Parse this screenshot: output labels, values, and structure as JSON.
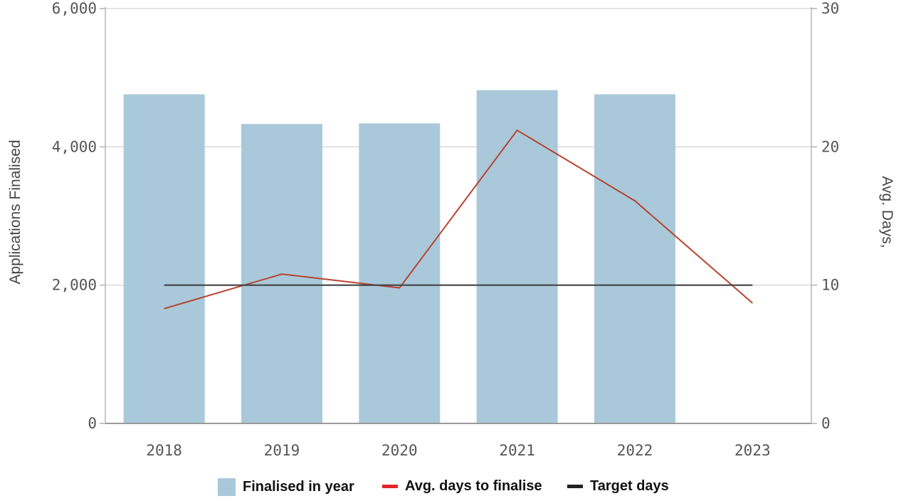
{
  "chart_data": {
    "type": "bar",
    "categories": [
      "2018",
      "2019",
      "2020",
      "2021",
      "2022",
      "2023"
    ],
    "series": [
      {
        "name": "Finalised in year",
        "type": "bar",
        "axis": "left",
        "color": "#a9c9da",
        "values": [
          4760,
          4330,
          4340,
          4820,
          4760,
          0
        ]
      },
      {
        "name": "Avg. days to finalise",
        "type": "line",
        "axis": "right",
        "color": "#b8432f",
        "values": [
          8.3,
          10.8,
          9.8,
          21.2,
          16.1,
          8.7
        ]
      },
      {
        "name": "Target days",
        "type": "line",
        "axis": "right",
        "color": "#444444",
        "values": [
          10,
          10,
          10,
          10,
          10,
          10
        ]
      }
    ],
    "ylabel": "Applications Finalised",
    "ylabel_right": "Avg. Days,",
    "ylim": [
      0,
      6000
    ],
    "ylim_right": [
      0,
      30
    ],
    "yticks": [
      {
        "value": 0,
        "label": "0"
      },
      {
        "value": 2000,
        "label": "2,000"
      },
      {
        "value": 4000,
        "label": "4,000"
      },
      {
        "value": 6000,
        "label": "6,000"
      }
    ],
    "yticks_right": [
      {
        "value": 0,
        "label": "0"
      },
      {
        "value": 10,
        "label": "10"
      },
      {
        "value": 20,
        "label": "20"
      },
      {
        "value": 30,
        "label": "30"
      }
    ],
    "grid": true,
    "legend_position": "bottom-center"
  },
  "legend": {
    "items": [
      {
        "label": "Finalised in year",
        "color": "#a9c9da",
        "shape": "square"
      },
      {
        "label": "Avg. days to finalise",
        "color": "#e0262b",
        "shape": "dash"
      },
      {
        "label": "Target days",
        "color": "#222222",
        "shape": "dash"
      }
    ]
  }
}
